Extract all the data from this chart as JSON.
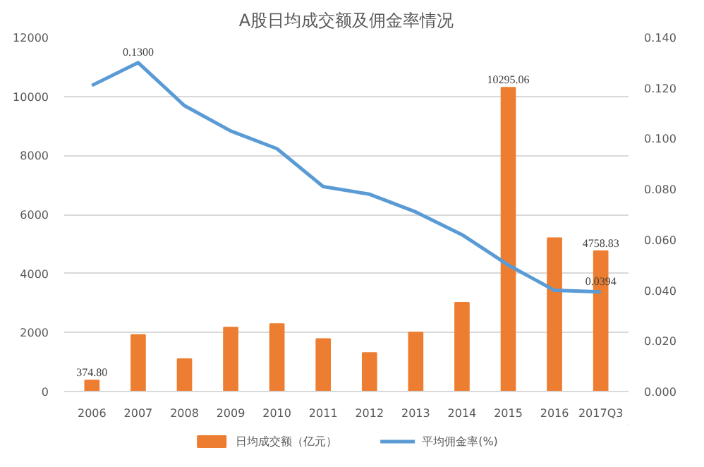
{
  "chart_data": {
    "type": "bar",
    "title": "A股日均成交额及佣金率情况",
    "categories": [
      "2006",
      "2007",
      "2008",
      "2009",
      "2010",
      "2011",
      "2012",
      "2013",
      "2014",
      "2015",
      "2016",
      "2017Q3"
    ],
    "series": [
      {
        "name": "日均成交额（亿元）",
        "color": "#ed7d31",
        "values": [
          374.8,
          1920,
          1100,
          2170,
          2290,
          1780,
          1310,
          2000,
          3010,
          10295.06,
          5200,
          4758.83
        ],
        "value_labels": [
          "374.80",
          null,
          null,
          null,
          null,
          null,
          null,
          null,
          null,
          "10295.06",
          null,
          "4758.83"
        ]
      },
      {
        "name": "平均佣金率(%)",
        "type": "line",
        "axis": "y2",
        "color": "#5b9bd5",
        "values": [
          0.121,
          0.13,
          0.113,
          0.103,
          0.096,
          0.081,
          0.078,
          0.071,
          0.062,
          0.05,
          0.04,
          0.0394
        ],
        "value_labels": [
          null,
          "0.1300",
          null,
          null,
          null,
          null,
          null,
          null,
          null,
          null,
          null,
          "0.0394"
        ]
      }
    ],
    "ylim": [
      0,
      12000
    ],
    "yticks": [
      0,
      2000,
      4000,
      6000,
      8000,
      10000,
      12000
    ],
    "y2lim": [
      0,
      0.14
    ],
    "y2ticks": [
      {
        "value": 0,
        "label": "0.000"
      },
      {
        "value": 0.02,
        "label": "0.020"
      },
      {
        "value": 0.04,
        "label": "0.040"
      },
      {
        "value": 0.06,
        "label": "0.060"
      },
      {
        "value": 0.08,
        "label": "0.080"
      },
      {
        "value": 0.1,
        "label": "0.100"
      },
      {
        "value": 0.12,
        "label": "0.120"
      },
      {
        "value": 0.14,
        "label": "0.140"
      }
    ],
    "grid": "y",
    "legend": "bottom",
    "line_style": "solid",
    "marker": "none"
  }
}
